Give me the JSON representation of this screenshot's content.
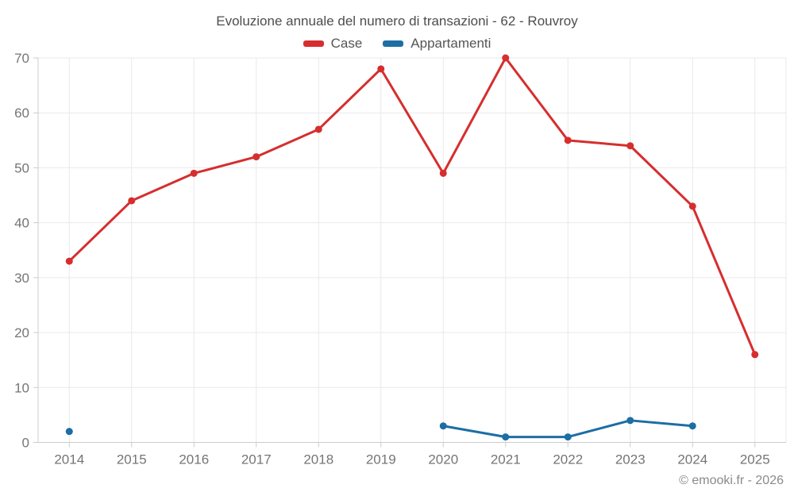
{
  "chart_data": {
    "type": "line",
    "title": "Evoluzione annuale del numero di transazioni - 62 - Rouvroy",
    "categories": [
      "2014",
      "2015",
      "2016",
      "2017",
      "2018",
      "2019",
      "2020",
      "2021",
      "2022",
      "2023",
      "2024",
      "2025"
    ],
    "series": [
      {
        "name": "Case",
        "color": "#d62e2e",
        "values": [
          33,
          44,
          49,
          52,
          57,
          68,
          49,
          70,
          55,
          54,
          43,
          16
        ]
      },
      {
        "name": "Appartamenti",
        "color": "#1c6ea4",
        "values": [
          2,
          null,
          null,
          null,
          null,
          null,
          3,
          1,
          1,
          4,
          3,
          null
        ]
      }
    ],
    "xlabel": "",
    "ylabel": "",
    "ylim": [
      0,
      70
    ],
    "y_ticks": [
      0,
      10,
      20,
      30,
      40,
      50,
      60,
      70
    ],
    "grid": true,
    "legend_position": "top"
  },
  "footer": {
    "credit": "© emooki.fr - 2026"
  }
}
